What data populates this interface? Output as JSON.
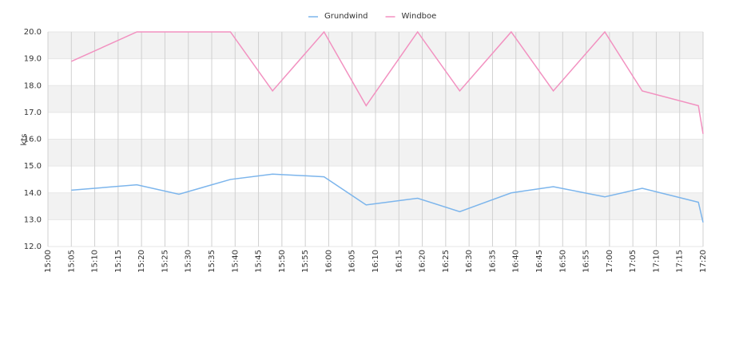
{
  "chart_data": {
    "type": "line",
    "y_label": "kts",
    "x": [
      "15:05",
      "15:19",
      "15:28",
      "15:39",
      "15:48",
      "15:59",
      "16:08",
      "16:19",
      "16:28",
      "16:39",
      "16:48",
      "16:59",
      "17:07",
      "17:19",
      "17:20"
    ],
    "series": [
      {
        "name": "Grundwind",
        "color": "#7cb5ec",
        "values": [
          14.1,
          14.3,
          13.95,
          14.5,
          14.7,
          14.6,
          13.55,
          13.8,
          13.3,
          14.0,
          14.23,
          13.85,
          14.17,
          13.65,
          12.9
        ]
      },
      {
        "name": "Windboe",
        "color": "#f291c0",
        "values": [
          18.9,
          20.0,
          20.0,
          20.0,
          17.8,
          20.0,
          17.25,
          20.0,
          17.8,
          20.0,
          17.8,
          20.0,
          17.8,
          17.25,
          16.2
        ]
      }
    ],
    "xlim": [
      "15:00",
      "17:20"
    ],
    "xticks": [
      "15:00",
      "15:05",
      "15:10",
      "15:15",
      "15:20",
      "15:25",
      "15:30",
      "15:35",
      "15:40",
      "15:45",
      "15:50",
      "15:55",
      "16:00",
      "16:05",
      "16:10",
      "16:15",
      "16:20",
      "16:25",
      "16:30",
      "16:35",
      "16:40",
      "16:45",
      "16:50",
      "16:55",
      "17:00",
      "17:05",
      "17:10",
      "17:15",
      "17:20"
    ],
    "ylim": [
      12,
      20
    ],
    "yticks": [
      {
        "value": 12,
        "label": "12.0"
      },
      {
        "value": 13,
        "label": "13.0"
      },
      {
        "value": 14,
        "label": "14.0"
      },
      {
        "value": 15,
        "label": "15.0"
      },
      {
        "value": 16,
        "label": "16.0"
      },
      {
        "value": 17,
        "label": "17.0"
      },
      {
        "value": 18,
        "label": "18.0"
      },
      {
        "value": 19,
        "label": "19.0"
      },
      {
        "value": 20,
        "label": "20.0"
      }
    ],
    "grid": true,
    "legend": "top"
  }
}
